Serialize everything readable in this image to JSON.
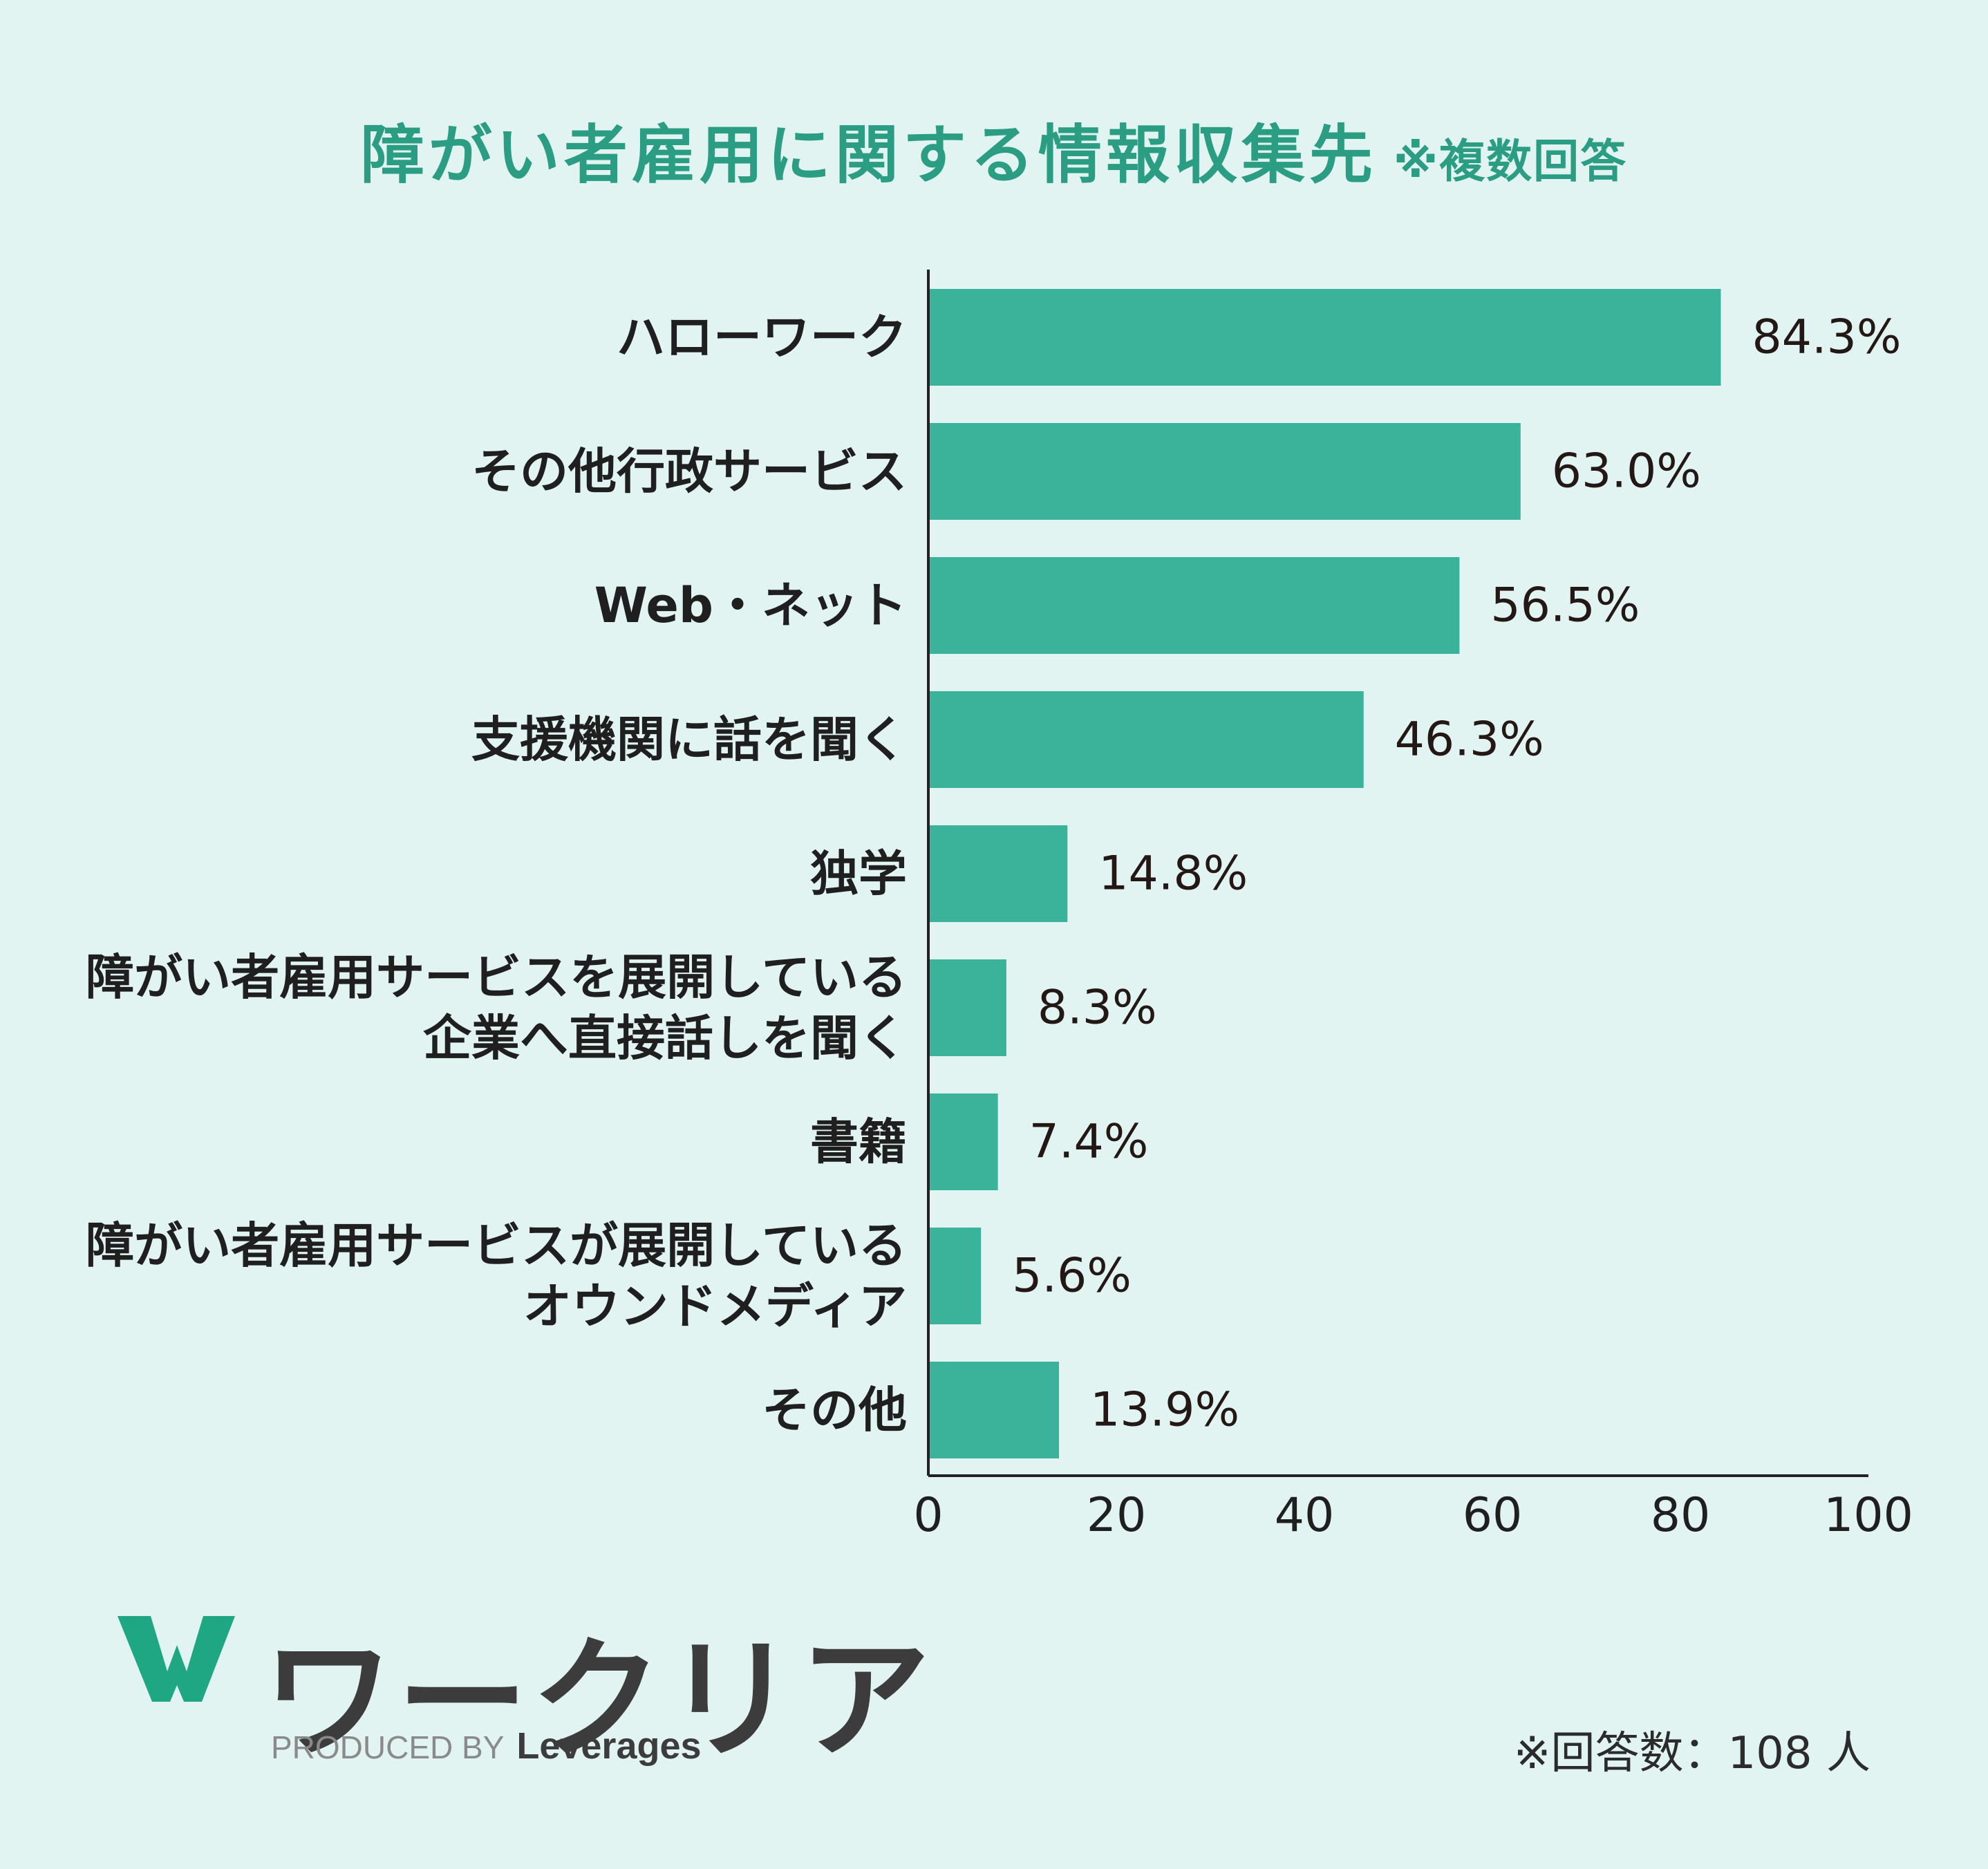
{
  "title": {
    "main": "障がい者雇用に関する情報収集先",
    "sub": "※複数回答"
  },
  "chart_data": {
    "type": "bar",
    "orientation": "horizontal",
    "categories": [
      "ハローワーク",
      "その他行政サービス",
      "Web・ネット",
      "支援機関に話を聞く",
      "独学",
      "障がい者雇用サービスを展開している\n企業へ直接話しを聞く",
      "書籍",
      "障がい者雇用サービスが展開している\nオウンドメディア",
      "その他"
    ],
    "values": [
      84.3,
      63.0,
      56.5,
      46.3,
      14.8,
      8.3,
      7.4,
      5.6,
      13.9
    ],
    "value_labels": [
      "84.3%",
      "63.0%",
      "56.5%",
      "46.3%",
      "14.8%",
      "8.3%",
      "7.4%",
      "5.6%",
      "13.9%"
    ],
    "xlim": [
      0,
      100
    ],
    "xticks": [
      "0",
      "20",
      "40",
      "60",
      "80",
      "100"
    ],
    "bar_color": "#3ab39a",
    "grid": false
  },
  "logo": {
    "word": "ワークリア",
    "produced_by": "PRODUCED BY",
    "brand": "Leverages",
    "color": "#1fa783"
  },
  "note": "※回答数：108 人"
}
